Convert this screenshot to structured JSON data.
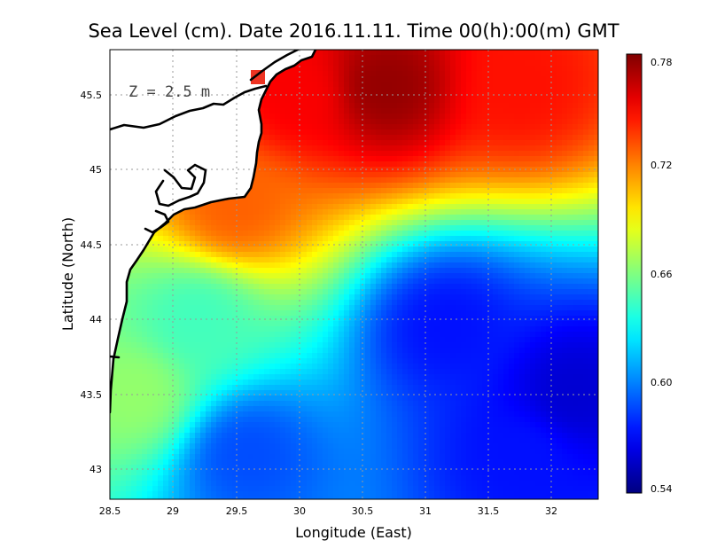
{
  "chart_data": {
    "type": "heatmap",
    "title": "Sea Level (cm). Date 2016.11.11. Time 00(h):00(m) GMT",
    "annotation": "Z = 2.5 m",
    "xlabel": "Longitude (East)",
    "ylabel": "Latitude (North)",
    "xlim": [
      28.5,
      32.4
    ],
    "ylim": [
      42.8,
      45.8
    ],
    "xticks": [
      "28.5",
      "29",
      "29.5",
      "30",
      "30.5",
      "31",
      "31.5",
      "32"
    ],
    "yticks": [
      "43",
      "43.5",
      "44",
      "44.5",
      "45",
      "45.5"
    ],
    "grid": true,
    "colorbar": {
      "min": 0.54,
      "max": 0.79,
      "ticks": [
        "0.54",
        "0.60",
        "0.66",
        "0.72",
        "0.78"
      ],
      "colormap": "jet"
    },
    "field_features": [
      {
        "lon": 30.7,
        "lat": 45.55,
        "value": 0.785
      },
      {
        "lon": 30.0,
        "lat": 45.5,
        "value": 0.76
      },
      {
        "lon": 31.8,
        "lat": 45.55,
        "value": 0.755
      },
      {
        "lon": 29.5,
        "lat": 44.75,
        "value": 0.735
      },
      {
        "lon": 31.2,
        "lat": 43.95,
        "value": 0.575
      },
      {
        "lon": 32.2,
        "lat": 43.5,
        "value": 0.56
      },
      {
        "lon": 31.8,
        "lat": 43.1,
        "value": 0.575
      },
      {
        "lon": 29.6,
        "lat": 43.1,
        "value": 0.59
      },
      {
        "lon": 29.2,
        "lat": 44.0,
        "value": 0.65
      },
      {
        "lon": 28.7,
        "lat": 43.5,
        "value": 0.67
      }
    ],
    "background_value": 0.645
  }
}
